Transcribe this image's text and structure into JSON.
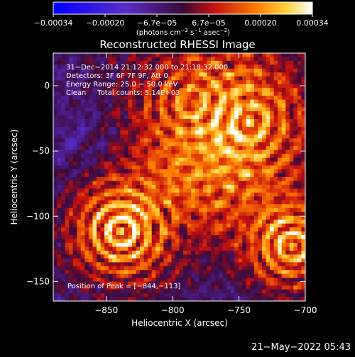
{
  "colorbar": {
    "ticks": [
      "−0.00034",
      "−0.00020",
      "−6.7e−05",
      "6.7e−05",
      "0.00020",
      "0.00034"
    ],
    "unit_main": "(photons cm",
    "unit_exp1": "−2",
    "unit_mid": " s",
    "unit_exp2": "−1",
    "unit_end": " asec",
    "unit_exp3": "−2",
    "unit_close": ")"
  },
  "plot": {
    "title": "Reconstructed RHESSI Image",
    "xlabel": "Heliocentric X (arcsec)",
    "ylabel": "Heliocentric Y (arcsec)",
    "x_ticks": [
      {
        "label": "−850",
        "value": -850
      },
      {
        "label": "−800",
        "value": -800
      },
      {
        "label": "−750",
        "value": -750
      },
      {
        "label": "−700",
        "value": -700
      }
    ],
    "y_ticks": [
      {
        "label": "0",
        "value": 0
      },
      {
        "label": "−50",
        "value": -50
      },
      {
        "label": "−100",
        "value": -100
      },
      {
        "label": "−150",
        "value": -150
      }
    ],
    "xlim": [
      -890,
      -700
    ],
    "ylim": [
      -165,
      25
    ],
    "info_lines": [
      "31−Dec−2014 21:12:32.000 to 21:18:32.000",
      "Detectors: 3F 6F 7F 9F, Att 0",
      "Energy Range: 25.0 − 50.0 keV",
      "Clean     Total counts: 5.14E+03"
    ],
    "peak_label": "Position of Peak = [−844,−113]"
  },
  "timestamp": "21−May−2022 05:43"
}
